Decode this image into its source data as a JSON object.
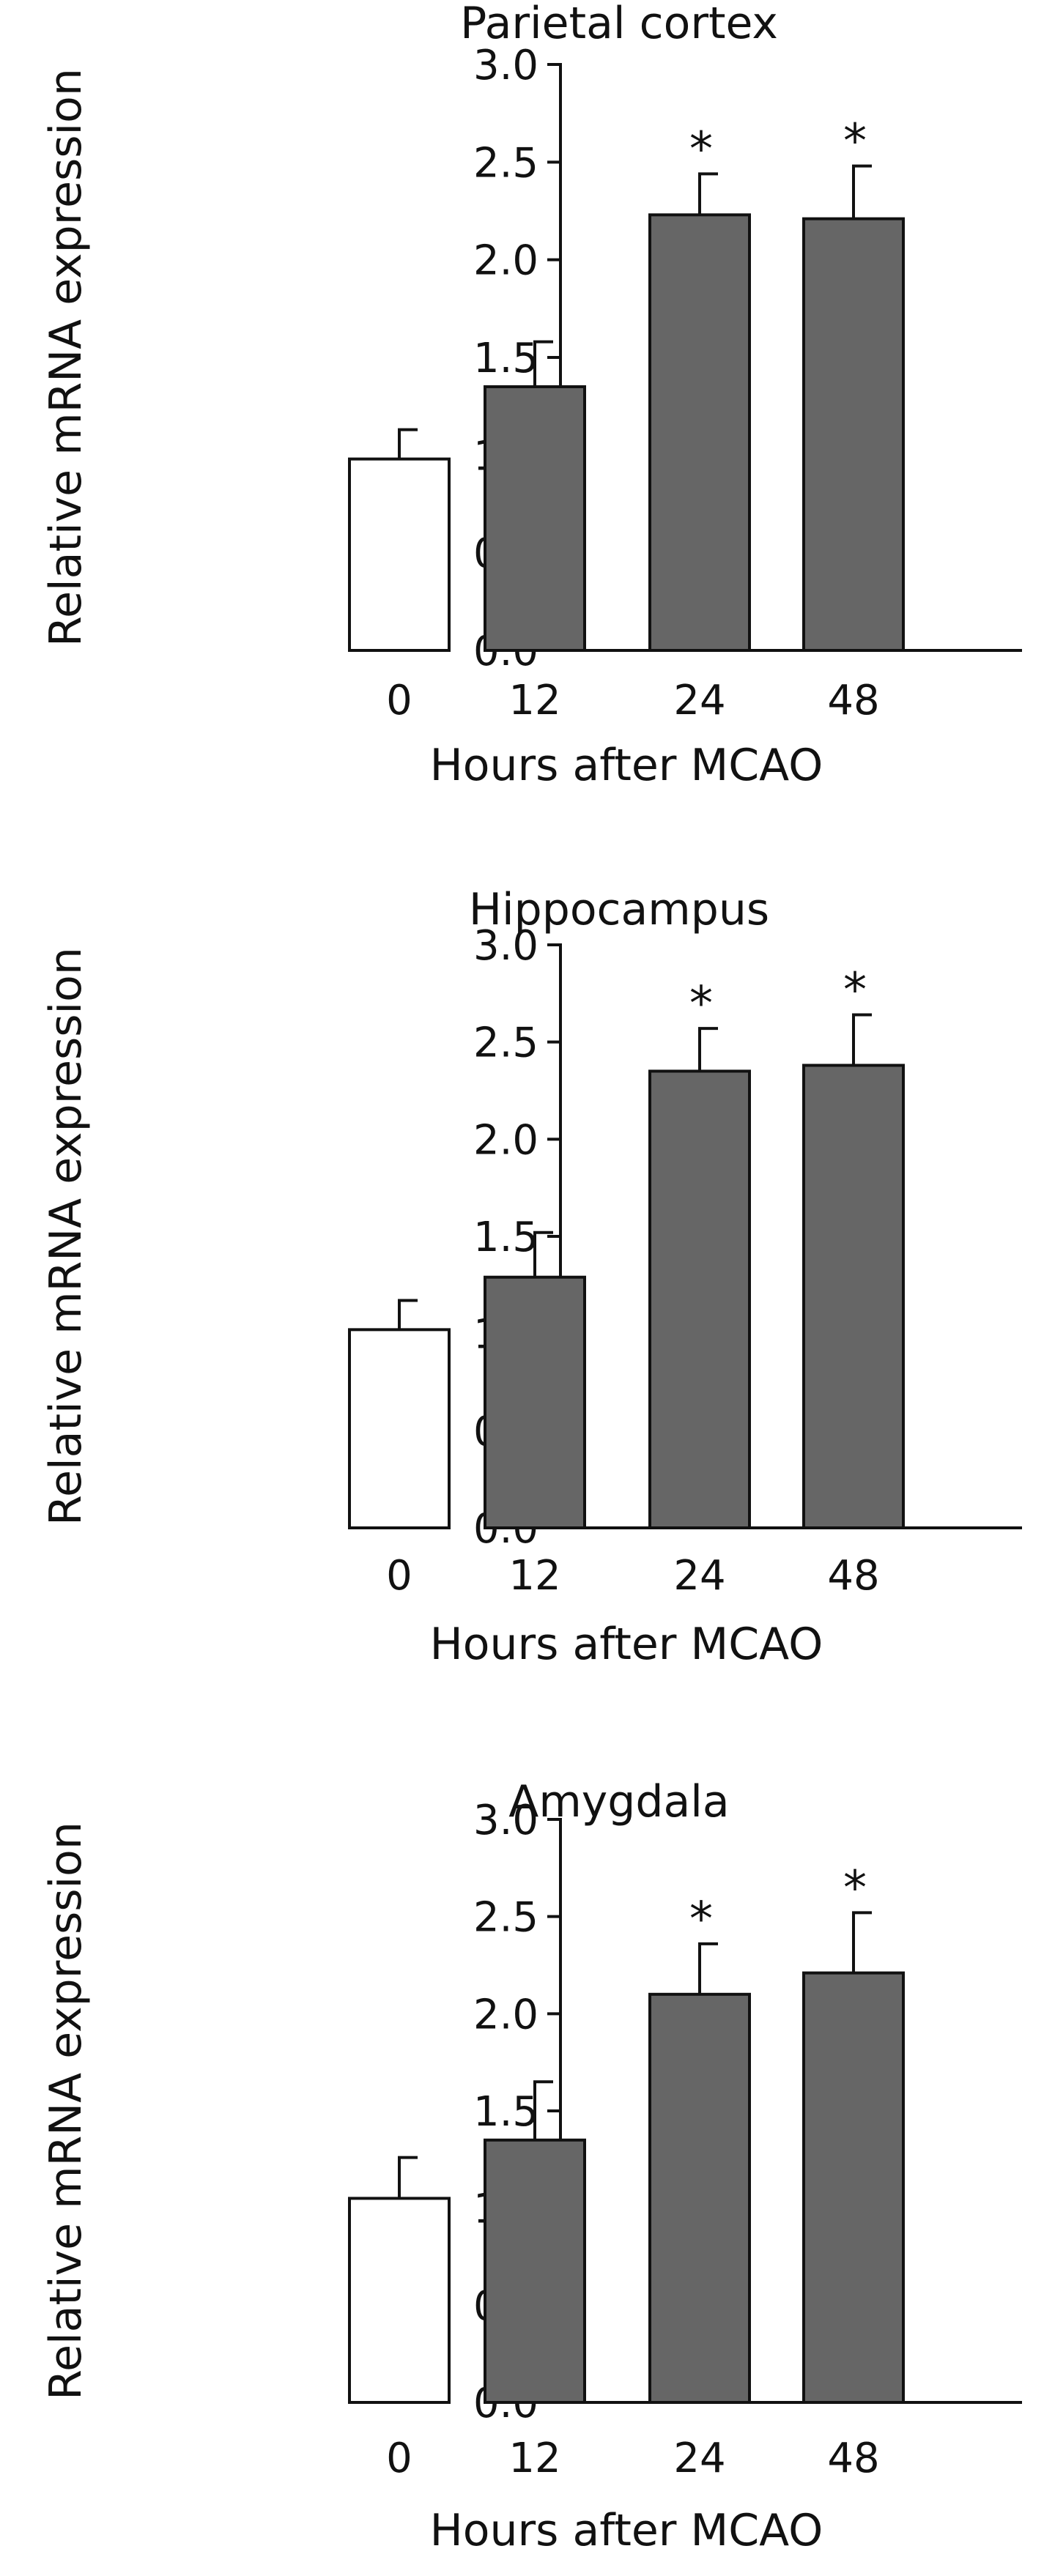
{
  "chart_data": [
    {
      "type": "bar",
      "title": "Parietal cortex",
      "xlabel": "Hours after MCAO",
      "ylabel": "Relative mRNA expression",
      "categories": [
        "0",
        "12",
        "24",
        "48"
      ],
      "values": [
        0.98,
        1.35,
        2.23,
        2.21
      ],
      "errors": [
        0.15,
        0.23,
        0.21,
        0.27
      ],
      "significance": [
        "",
        "",
        "*",
        "*"
      ],
      "bar_colors": [
        "#ffffff",
        "#666666",
        "#666666",
        "#666666"
      ],
      "ylim": [
        0,
        3.0
      ],
      "yticks": [
        "0.0",
        "0.5",
        "1.0",
        "1.5",
        "2.0",
        "2.5",
        "3.0"
      ],
      "grid": false
    },
    {
      "type": "bar",
      "title": "Hippocampus",
      "xlabel": "Hours after MCAO",
      "ylabel": "Relative mRNA expression",
      "categories": [
        "0",
        "12",
        "24",
        "48"
      ],
      "values": [
        1.02,
        1.29,
        2.35,
        2.38
      ],
      "errors": [
        0.15,
        0.23,
        0.22,
        0.26
      ],
      "significance": [
        "",
        "",
        "*",
        "*"
      ],
      "bar_colors": [
        "#ffffff",
        "#666666",
        "#666666",
        "#666666"
      ],
      "ylim": [
        0,
        3.0
      ],
      "yticks": [
        "0.0",
        "0.5",
        "1.0",
        "1.5",
        "2.0",
        "2.5",
        "3.0"
      ],
      "grid": false
    },
    {
      "type": "bar",
      "title": "Amygdala",
      "xlabel": "Hours after MCAO",
      "ylabel": "Relative mRNA expression",
      "categories": [
        "0",
        "12",
        "24",
        "48"
      ],
      "values": [
        1.05,
        1.35,
        2.1,
        2.21
      ],
      "errors": [
        0.21,
        0.3,
        0.26,
        0.31
      ],
      "significance": [
        "",
        "",
        "*",
        "*"
      ],
      "bar_colors": [
        "#ffffff",
        "#666666",
        "#666666",
        "#666666"
      ],
      "ylim": [
        0,
        3.0
      ],
      "yticks": [
        "0.0",
        "0.5",
        "1.0",
        "1.5",
        "2.0",
        "2.5",
        "3.0"
      ],
      "grid": false
    }
  ]
}
